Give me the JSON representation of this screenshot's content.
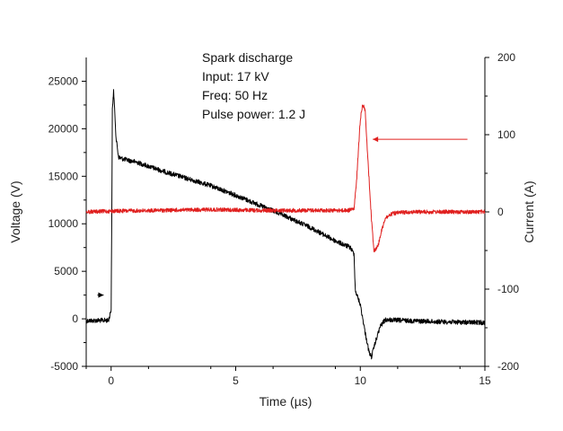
{
  "chart_data": {
    "type": "line",
    "annotations": [
      "Spark discharge",
      "Input: 17 kV",
      "Freq: 50 Hz",
      "Pulse power: 1.2 J"
    ],
    "xlabel": "Time (µs)",
    "ylabel": "Voltage (V)",
    "y2label": "Current (A)",
    "xlim": [
      -1,
      15
    ],
    "ylim": [
      -5000,
      27500
    ],
    "y2lim": [
      -200,
      200
    ],
    "xticks": [
      0,
      5,
      10,
      15
    ],
    "yticks": [
      -5000,
      0,
      5000,
      10000,
      15000,
      20000,
      25000
    ],
    "y2ticks": [
      -200,
      -100,
      0,
      100,
      200
    ],
    "grid": false,
    "series": [
      {
        "axis": "left",
        "color": "#000000",
        "x": [
          -1.0,
          -0.1,
          0.0,
          0.02,
          0.05,
          0.1,
          0.2,
          0.3,
          0.5,
          1.0,
          2.0,
          3.0,
          4.0,
          5.0,
          6.0,
          7.0,
          8.0,
          9.0,
          9.6,
          9.75,
          9.8,
          10.0,
          10.2,
          10.35,
          10.45,
          10.6,
          10.8,
          11.0,
          12.0,
          13.0,
          14.0,
          15.0
        ],
        "y": [
          -200,
          -150,
          1000,
          8000,
          22000,
          24000,
          19000,
          17000,
          16800,
          16500,
          15600,
          14800,
          14000,
          13000,
          11900,
          10800,
          9600,
          8200,
          7500,
          6800,
          3000,
          1500,
          -1500,
          -3500,
          -4000,
          -2500,
          -800,
          -100,
          -200,
          -300,
          -350,
          -400
        ]
      },
      {
        "axis": "right",
        "color": "#e0201f",
        "x": [
          -1.0,
          0.0,
          2.0,
          4.0,
          6.0,
          8.0,
          9.5,
          9.75,
          9.85,
          10.0,
          10.1,
          10.2,
          10.3,
          10.45,
          10.55,
          10.7,
          10.85,
          11.0,
          11.3,
          11.6,
          12.0,
          15.0
        ],
        "y": [
          0,
          1,
          2,
          3,
          2,
          2,
          2,
          4,
          40,
          120,
          140,
          130,
          70,
          -10,
          -50,
          -45,
          -25,
          -8,
          -2,
          -1,
          0,
          0
        ]
      }
    ],
    "arrows": [
      {
        "axis": "left",
        "from": [
          -0.55,
          2500
        ],
        "to": [
          -0.3,
          2500
        ],
        "color": "#000000"
      },
      {
        "axis": "right",
        "from": [
          14.3,
          94
        ],
        "to": [
          10.5,
          94
        ],
        "color": "#e0201f"
      }
    ]
  }
}
